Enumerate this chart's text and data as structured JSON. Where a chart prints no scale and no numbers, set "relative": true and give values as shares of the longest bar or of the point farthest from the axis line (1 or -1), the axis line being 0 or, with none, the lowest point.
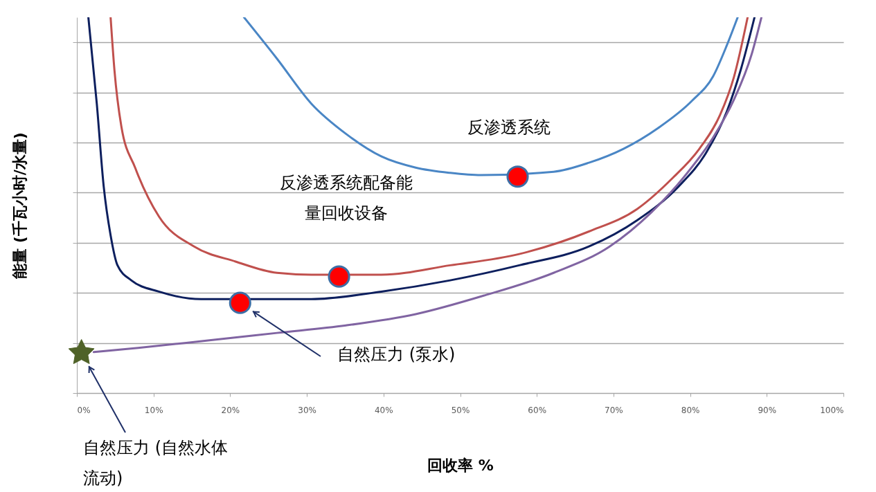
{
  "chart_data": {
    "type": "line",
    "xlabel": "回收率 %",
    "ylabel": "能量 (千瓦小时/水量)",
    "relative": true,
    "grid": "y",
    "xlim": [
      0,
      100
    ],
    "xticks": [
      {
        "value": 0,
        "label": "0%"
      },
      {
        "value": 10,
        "label": "10%"
      },
      {
        "value": 20,
        "label": "20%"
      },
      {
        "value": 30,
        "label": "30%"
      },
      {
        "value": 40,
        "label": "40%"
      },
      {
        "value": 50,
        "label": "50%"
      },
      {
        "value": 60,
        "label": "60%"
      },
      {
        "value": 70,
        "label": "70%"
      },
      {
        "value": 80,
        "label": "80%"
      },
      {
        "value": 90,
        "label": "90%"
      },
      {
        "value": 100,
        "label": "100%"
      }
    ],
    "series": [
      {
        "color": "#4a86c5",
        "x": [
          21.8,
          26.1,
          30.6,
          35.1,
          39.7,
          44.2,
          48.7,
          52.7,
          62.2,
          66.8,
          71.3,
          75.8,
          80.3,
          83.0,
          84.8,
          86.2
        ],
        "values": [
          1,
          0.89,
          0.77,
          0.69,
          0.63,
          0.6,
          0.586,
          0.58,
          0.589,
          0.613,
          0.65,
          0.705,
          0.779,
          0.843,
          0.926,
          1
        ]
      },
      {
        "color": "#c0504d",
        "x": [
          4.4,
          4.9,
          5.8,
          7.6,
          10.7,
          15.3,
          20.7,
          26.1,
          30.6,
          39.7,
          48.7,
          57.7,
          66.8,
          73.1,
          77.6,
          81.2,
          83.9,
          85.7,
          87.5
        ],
        "values": [
          1,
          0.86,
          0.71,
          0.6,
          0.47,
          0.39,
          0.35,
          0.32,
          0.315,
          0.315,
          0.34,
          0.37,
          0.43,
          0.49,
          0.57,
          0.65,
          0.74,
          0.84,
          1
        ]
      },
      {
        "color": "#0d1f5e",
        "x": [
          1.5,
          2.6,
          3.5,
          4.4,
          5.3,
          7.1,
          10.7,
          16.2,
          30.6,
          39.7,
          48.7,
          57.7,
          66.8,
          73.1,
          78.5,
          82.1,
          84.8,
          86.6,
          88.4
        ],
        "values": [
          1,
          0.77,
          0.55,
          0.42,
          0.34,
          0.3,
          0.27,
          0.25,
          0.25,
          0.27,
          0.3,
          0.34,
          0.39,
          0.46,
          0.55,
          0.64,
          0.75,
          0.86,
          1
        ]
      },
      {
        "color": "#8064a2",
        "x": [
          2.2,
          8.0,
          17.1,
          26.1,
          35.1,
          44.2,
          53.2,
          62.2,
          69.5,
          74.9,
          79.4,
          83.0,
          85.7,
          88.0,
          89.3
        ],
        "values": [
          0.109,
          0.12,
          0.14,
          0.16,
          0.18,
          0.21,
          0.26,
          0.32,
          0.39,
          0.48,
          0.58,
          0.68,
          0.78,
          0.9,
          1
        ]
      },
      {
        "type": "scatter",
        "color": "#ff0000",
        "marker": "circle",
        "x": [
          57.5,
          34.2,
          21.3
        ],
        "values": [
          0.576,
          0.31,
          0.24
        ]
      },
      {
        "type": "scatter",
        "color": "#4f6228",
        "marker": "star",
        "x": [
          0.6
        ],
        "values": [
          0.107
        ]
      }
    ],
    "annotations": [
      "反渗透系统",
      "反渗透系统配备能量回收设备",
      "自然压力 (泵水)",
      "自然压力 (自然水体流动)"
    ]
  }
}
